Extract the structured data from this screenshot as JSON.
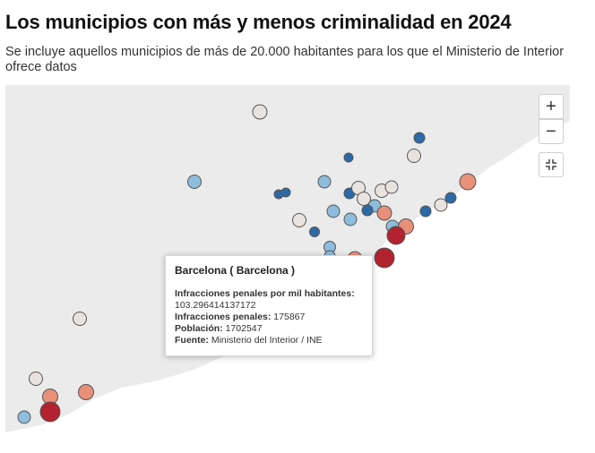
{
  "header": {
    "title": "Los municipios con más y menos criminalidad en 2024",
    "subtitle": "Se incluye aquellos municipios de más de 20.000 habitantes para los que el Ministerio de Interior ofrece datos"
  },
  "controls": {
    "zoom_in": "+",
    "zoom_out": "−",
    "fit_icon": "fit-bounds-icon"
  },
  "colors": {
    "land": "#ebebeb",
    "sea": "#ffffff",
    "very_high": "#b2222f",
    "high": "#e8907a",
    "medium": "#e8e3de",
    "low": "#8dbcdc",
    "very_low": "#2b6aa6"
  },
  "tooltip": {
    "title": "Barcelona ( Barcelona )",
    "label_rate": "Infracciones penales por mil habitantes:",
    "value_rate": "103.296414137172",
    "label_infr": "Infracciones penales:",
    "value_infr": "175867",
    "label_pob": "Población:",
    "value_pob": "1702547",
    "label_src": "Fuente:",
    "value_src": "Ministerio del Interior / INE"
  }
}
